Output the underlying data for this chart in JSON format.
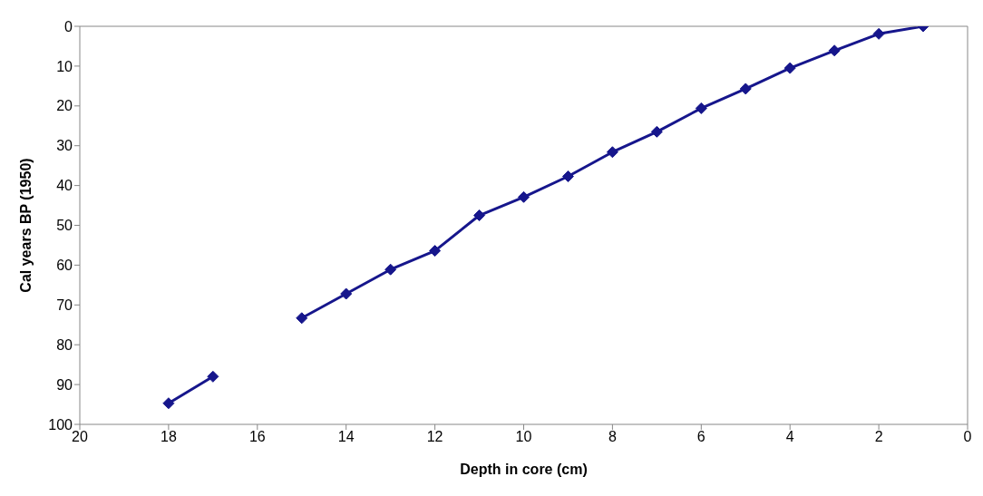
{
  "chart_data": {
    "type": "line",
    "xlabel": "Depth in core (cm)",
    "ylabel": "Cal years BP (1950)",
    "x": [
      18,
      17,
      16,
      15,
      14,
      13,
      12,
      11,
      10,
      9,
      8,
      7,
      6,
      5,
      4,
      3,
      2,
      1
    ],
    "series": [
      {
        "color": "#16168c",
        "values": [
          94.7,
          88,
          null,
          73.3,
          67.2,
          61.1,
          56.4,
          47.5,
          42.9,
          37.7,
          31.6,
          26.5,
          20.6,
          15.7,
          10.5,
          6.1,
          1.9,
          0
        ]
      }
    ],
    "xlim": [
      20,
      0
    ],
    "xticks": [
      20,
      18,
      16,
      14,
      12,
      10,
      8,
      6,
      4,
      2,
      0
    ],
    "ylim": [
      100,
      0
    ],
    "yticks": [
      0,
      10,
      20,
      30,
      40,
      50,
      60,
      70,
      80,
      90,
      100
    ],
    "grid": false,
    "legend": false,
    "marker": "diamond",
    "line_style": "solid"
  }
}
